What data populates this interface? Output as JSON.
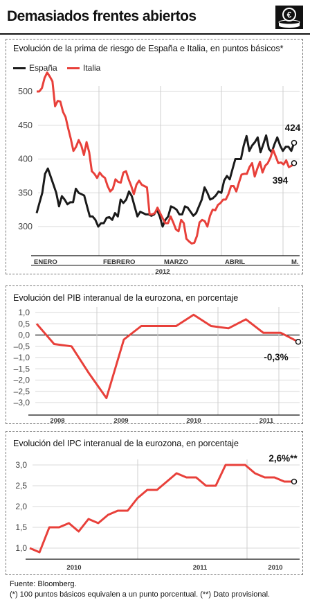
{
  "header": {
    "title": "Demasiados frentes abiertos",
    "icon": "euro-coins-icon"
  },
  "colors": {
    "spain": "#1a1a1a",
    "italy": "#e8403a",
    "accent": "#e8403a"
  },
  "footer": {
    "source": "Fuente: Bloomberg.",
    "note": "(*) 100 puntos básicos equivalen a un punto porcentual. (**) Dato provisional."
  },
  "chart_data": [
    {
      "type": "line",
      "title": "Evolución de la prima de riesgo de España e Italia, en puntos básicos*",
      "xlabel": "2012",
      "ylabel": "",
      "ylim": [
        300,
        500
      ],
      "yticks": [
        "500",
        "450",
        "400",
        "350",
        "300"
      ],
      "xtick_labels": [
        "ENERO",
        "FEBRERO",
        "MARZO",
        "ABRIL",
        "M."
      ],
      "legend": "top-left",
      "grid": true,
      "end_labels": {
        "spain": "424",
        "italy": "394"
      },
      "series": [
        {
          "name": "España",
          "values": [
            320,
            335,
            350,
            378,
            386,
            374,
            362,
            350,
            330,
            345,
            340,
            333,
            336,
            336,
            356,
            350,
            348,
            346,
            330,
            315,
            315,
            310,
            300,
            305,
            305,
            313,
            314,
            310,
            320,
            315,
            340,
            335,
            340,
            352,
            345,
            330,
            315,
            322,
            320,
            318,
            318,
            316,
            318,
            325,
            315,
            300,
            310,
            315,
            330,
            328,
            325,
            318,
            318,
            330,
            328,
            322,
            316,
            320,
            330,
            340,
            358,
            350,
            340,
            342,
            346,
            352,
            350,
            368,
            375,
            370,
            385,
            400,
            400,
            400,
            420,
            434,
            412,
            420,
            425,
            432,
            410,
            422,
            435,
            415,
            410,
            422,
            432,
            420,
            412,
            418,
            418,
            412,
            424
          ]
        },
        {
          "name": "Italia",
          "values": [
            500,
            500,
            505,
            520,
            528,
            522,
            515,
            478,
            486,
            485,
            470,
            462,
            445,
            430,
            412,
            418,
            428,
            420,
            406,
            425,
            410,
            382,
            378,
            372,
            380,
            375,
            372,
            360,
            352,
            356,
            370,
            366,
            365,
            380,
            382,
            370,
            360,
            348,
            362,
            368,
            362,
            360,
            358,
            318,
            318,
            320,
            328,
            320,
            312,
            305,
            305,
            315,
            306,
            296,
            293,
            310,
            305,
            282,
            278,
            275,
            276,
            286,
            306,
            310,
            308,
            300,
            316,
            325,
            324,
            332,
            335,
            340,
            340,
            348,
            360,
            360,
            352,
            365,
            377,
            378,
            378,
            388,
            394,
            374,
            386,
            396,
            380,
            390,
            394,
            402,
            414,
            404,
            394,
            395,
            392,
            398,
            388,
            390,
            394
          ]
        }
      ]
    },
    {
      "type": "line",
      "title": "Evolución del PIB interanual de la eurozona, en porcentaje",
      "xlabel": "",
      "ylabel": "",
      "ylim": [
        -3.0,
        1.0
      ],
      "yticks": [
        "1,0",
        "0,5",
        "0,0",
        "–0,5",
        "–1,0",
        "–1,5",
        "–2,0",
        "–2,5",
        "–3,0"
      ],
      "xtick_labels": [
        "2008",
        "2009",
        "2010",
        "2011"
      ],
      "legend": "none",
      "grid": true,
      "end_label": "-0,3%",
      "series": [
        {
          "name": "",
          "values": [
            0.5,
            -0.4,
            -0.5,
            -1.7,
            -2.8,
            -0.2,
            0.4,
            0.4,
            0.4,
            0.9,
            0.4,
            0.3,
            0.7,
            0.1,
            0.1,
            -0.3
          ]
        }
      ]
    },
    {
      "type": "line",
      "title": "Evolución del IPC interanual de la eurozona, en porcentaje",
      "xlabel": "",
      "ylabel": "",
      "ylim": [
        1.0,
        3.0
      ],
      "yticks": [
        "3,0",
        "2,5",
        "2,0",
        "1,5",
        "1,0"
      ],
      "xtick_labels": [
        "2010",
        "2011",
        "2010"
      ],
      "legend": "none",
      "grid": true,
      "end_label": "2,6%**",
      "series": [
        {
          "name": "",
          "values": [
            1.0,
            0.9,
            1.5,
            1.5,
            1.6,
            1.4,
            1.7,
            1.6,
            1.8,
            1.9,
            1.9,
            2.2,
            2.4,
            2.4,
            2.6,
            2.8,
            2.7,
            2.7,
            2.5,
            2.5,
            3.0,
            3.0,
            3.0,
            2.8,
            2.7,
            2.7,
            2.6,
            2.6
          ]
        }
      ]
    }
  ]
}
